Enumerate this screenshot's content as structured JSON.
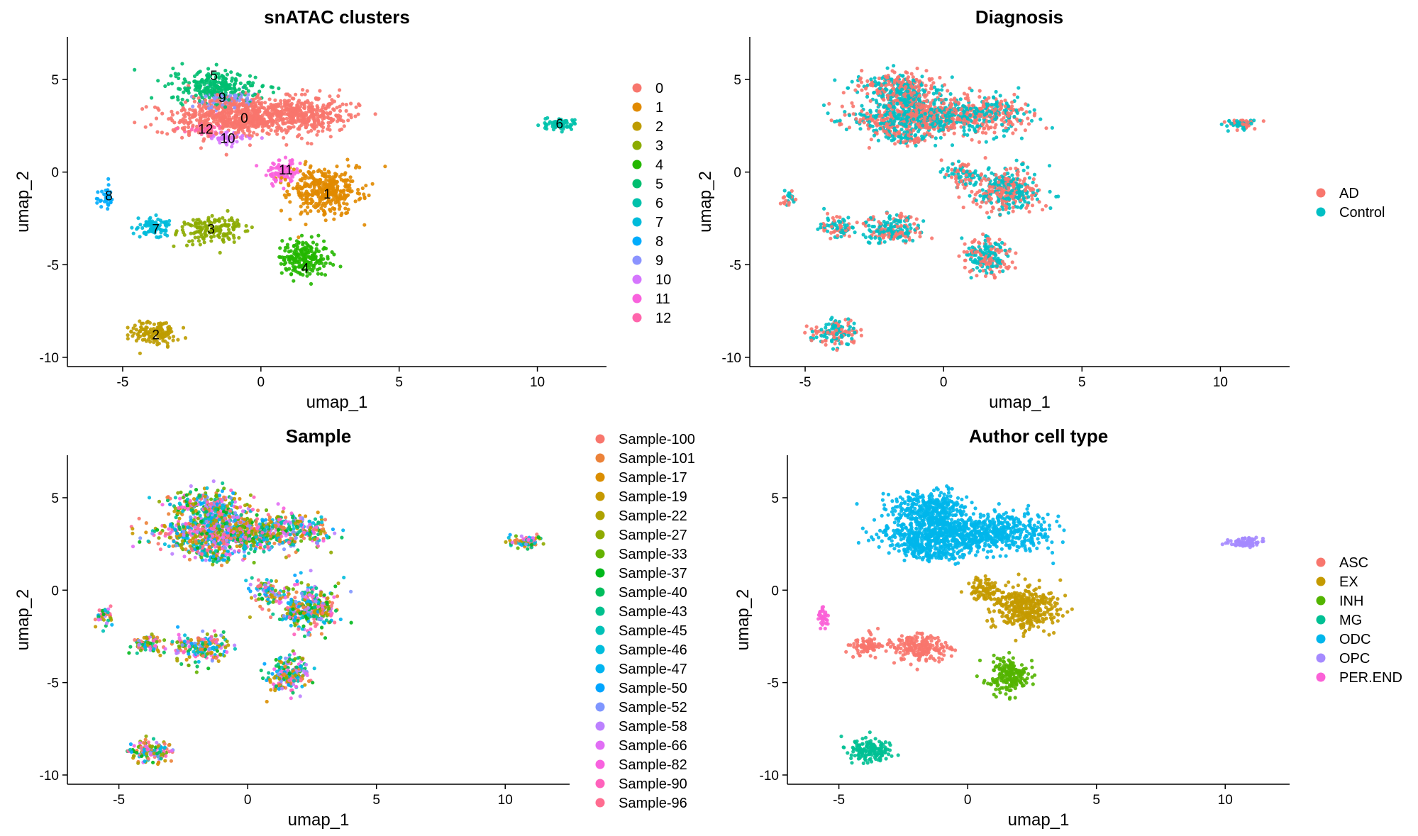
{
  "chart_data": [
    {
      "type": "scatter",
      "title": "snATAC clusters",
      "xlabel": "umap_1",
      "ylabel": "umap_2",
      "xlim": [
        -7,
        12.5
      ],
      "ylim": [
        -10.5,
        7.3
      ],
      "xticks": [
        "-5",
        "0",
        "5",
        "10"
      ],
      "yticks": [
        "-10",
        "-5",
        "0",
        "5"
      ],
      "legend_position": "right",
      "mode": "clusters",
      "legend": [
        {
          "label": "0",
          "color": "#F8766D"
        },
        {
          "label": "1",
          "color": "#E18A00"
        },
        {
          "label": "2",
          "color": "#BE9C00"
        },
        {
          "label": "3",
          "color": "#8CAB00"
        },
        {
          "label": "4",
          "color": "#24B700"
        },
        {
          "label": "5",
          "color": "#00BE70"
        },
        {
          "label": "6",
          "color": "#00C1AB"
        },
        {
          "label": "7",
          "color": "#00BBDA"
        },
        {
          "label": "8",
          "color": "#00ACFC"
        },
        {
          "label": "9",
          "color": "#8B93FF"
        },
        {
          "label": "10",
          "color": "#D575FE"
        },
        {
          "label": "11",
          "color": "#F962DD"
        },
        {
          "label": "12",
          "color": "#FF65AC"
        }
      ],
      "cluster_labels": [
        {
          "text": "5",
          "x": -1.7,
          "y": 5.2
        },
        {
          "text": "9",
          "x": -1.4,
          "y": 4.0
        },
        {
          "text": "0",
          "x": -0.6,
          "y": 2.9
        },
        {
          "text": "12",
          "x": -2.0,
          "y": 2.3
        },
        {
          "text": "10",
          "x": -1.2,
          "y": 1.8
        },
        {
          "text": "11",
          "x": 0.9,
          "y": 0.1
        },
        {
          "text": "1",
          "x": 2.4,
          "y": -1.2
        },
        {
          "text": "6",
          "x": 10.8,
          "y": 2.6
        },
        {
          "text": "8",
          "x": -5.5,
          "y": -1.3
        },
        {
          "text": "7",
          "x": -3.8,
          "y": -3.1
        },
        {
          "text": "3",
          "x": -1.8,
          "y": -3.1
        },
        {
          "text": "4",
          "x": 1.6,
          "y": -5.2
        },
        {
          "text": "2",
          "x": -3.8,
          "y": -8.8
        }
      ]
    },
    {
      "type": "scatter",
      "title": "Diagnosis",
      "xlabel": "umap_1",
      "ylabel": "umap_2",
      "xlim": [
        -7,
        12.5
      ],
      "ylim": [
        -10.5,
        7.3
      ],
      "xticks": [
        "-5",
        "0",
        "5",
        "10"
      ],
      "yticks": [
        "-10",
        "-5",
        "0",
        "5"
      ],
      "legend_position": "right",
      "mode": "mix",
      "legend": [
        {
          "label": "AD",
          "color": "#F8766D"
        },
        {
          "label": "Control",
          "color": "#00BFC4"
        }
      ]
    },
    {
      "type": "scatter",
      "title": "Sample",
      "xlabel": "umap_1",
      "ylabel": "umap_2",
      "xlim": [
        -7,
        12.5
      ],
      "ylim": [
        -10.5,
        7.3
      ],
      "xticks": [
        "-5",
        "0",
        "5",
        "10"
      ],
      "yticks": [
        "-10",
        "-5",
        "0",
        "5"
      ],
      "legend_position": "right",
      "mode": "mix",
      "legend": [
        {
          "label": "Sample-100",
          "color": "#F8766D"
        },
        {
          "label": "Sample-101",
          "color": "#EC8239"
        },
        {
          "label": "Sample-17",
          "color": "#DB8E00"
        },
        {
          "label": "Sample-19",
          "color": "#C69900"
        },
        {
          "label": "Sample-22",
          "color": "#AEA200"
        },
        {
          "label": "Sample-27",
          "color": "#8FAA00"
        },
        {
          "label": "Sample-33",
          "color": "#64B200"
        },
        {
          "label": "Sample-37",
          "color": "#00B81B"
        },
        {
          "label": "Sample-40",
          "color": "#00BD5C"
        },
        {
          "label": "Sample-43",
          "color": "#00C08D"
        },
        {
          "label": "Sample-45",
          "color": "#00C1B7"
        },
        {
          "label": "Sample-46",
          "color": "#00BDDC"
        },
        {
          "label": "Sample-47",
          "color": "#00B4F0"
        },
        {
          "label": "Sample-50",
          "color": "#00A5FF"
        },
        {
          "label": "Sample-52",
          "color": "#7F96FF"
        },
        {
          "label": "Sample-58",
          "color": "#BC81FF"
        },
        {
          "label": "Sample-66",
          "color": "#E16EF5"
        },
        {
          "label": "Sample-82",
          "color": "#F862DF"
        },
        {
          "label": "Sample-90",
          "color": "#FF62BC"
        },
        {
          "label": "Sample-96",
          "color": "#FF6C90"
        }
      ]
    },
    {
      "type": "scatter",
      "title": "Author cell type",
      "xlabel": "umap_1",
      "ylabel": "umap_2",
      "xlim": [
        -7,
        12.5
      ],
      "ylim": [
        -10.5,
        7.3
      ],
      "xticks": [
        "-5",
        "0",
        "5",
        "10"
      ],
      "yticks": [
        "-10",
        "-5",
        "0",
        "5"
      ],
      "legend_position": "right",
      "mode": "celltype",
      "legend": [
        {
          "label": "ASC",
          "color": "#F8766D"
        },
        {
          "label": "EX",
          "color": "#C49A00"
        },
        {
          "label": "INH",
          "color": "#53B400"
        },
        {
          "label": "MG",
          "color": "#00C094"
        },
        {
          "label": "ODC",
          "color": "#00B6EB"
        },
        {
          "label": "OPC",
          "color": "#A58AFF"
        },
        {
          "label": "PER.END",
          "color": "#FB61D7"
        }
      ]
    }
  ]
}
